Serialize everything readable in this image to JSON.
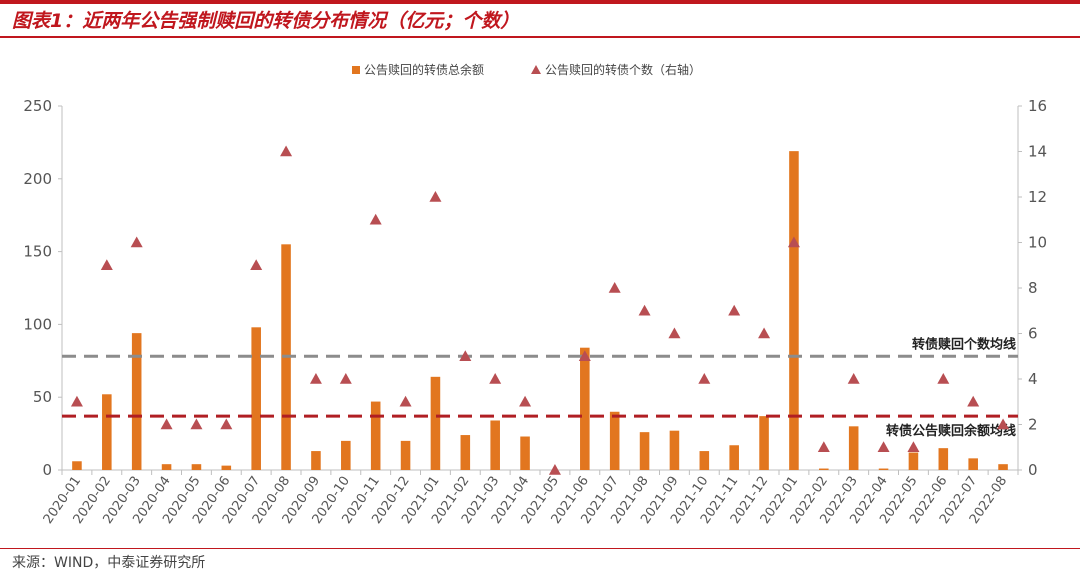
{
  "title": "图表1：近两年公告强制赎回的转债分布情况（亿元；个数）",
  "source": "来源：WIND，中泰证券研究所",
  "colors": {
    "bar": "#e2761f",
    "triangle": "#b84e52",
    "count_avg": "#8c8c8c",
    "amount_avg": "#b01e23",
    "accent": "#c0171e"
  },
  "chart_data": {
    "type": "bar",
    "categories": [
      "2020-01",
      "2020-02",
      "2020-03",
      "2020-04",
      "2020-05",
      "2020-06",
      "2020-07",
      "2020-08",
      "2020-09",
      "2020-10",
      "2020-11",
      "2020-12",
      "2021-01",
      "2021-02",
      "2021-03",
      "2021-04",
      "2021-05",
      "2021-06",
      "2021-07",
      "2021-08",
      "2021-09",
      "2021-10",
      "2021-11",
      "2021-12",
      "2022-01",
      "2022-02",
      "2022-03",
      "2022-04",
      "2022-05",
      "2022-06",
      "2022-07",
      "2022-08"
    ],
    "series": [
      {
        "name": "公告赎回的转债总余额",
        "type": "bar",
        "axis": "left",
        "values": [
          6,
          52,
          94,
          4,
          4,
          3,
          98,
          155,
          13,
          20,
          47,
          20,
          64,
          24,
          34,
          23,
          0,
          84,
          40,
          26,
          27,
          13,
          17,
          37,
          219,
          1,
          30,
          1,
          12,
          15,
          8,
          4
        ]
      },
      {
        "name": "公告赎回的转债个数（右轴）",
        "type": "scatter",
        "marker": "triangle",
        "axis": "right",
        "values": [
          3,
          9,
          10,
          2,
          2,
          2,
          9,
          14,
          4,
          4,
          11,
          3,
          12,
          5,
          4,
          3,
          0,
          5,
          8,
          7,
          6,
          4,
          7,
          6,
          10,
          1,
          4,
          1,
          1,
          4,
          3,
          2
        ]
      }
    ],
    "ylim_left": [
      0,
      250
    ],
    "yticks_left": [
      0,
      50,
      100,
      150,
      200,
      250
    ],
    "ylim_right": [
      0,
      16
    ],
    "yticks_right": [
      0,
      2,
      4,
      6,
      8,
      10,
      12,
      14,
      16
    ],
    "reference_lines": [
      {
        "label": "转债赎回个数均线",
        "axis": "right",
        "value": 5,
        "style": "dashed",
        "color": "#8c8c8c"
      },
      {
        "label": "转债公告赎回余额均线",
        "axis": "left",
        "value": 37,
        "style": "dashed",
        "color": "#b01e23"
      }
    ],
    "legend_placement": "top-center",
    "grid": false
  }
}
